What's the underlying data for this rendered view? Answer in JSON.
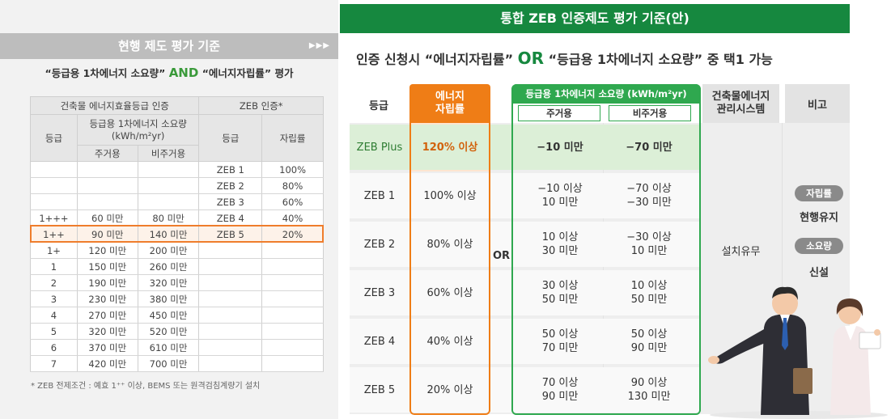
{
  "left": {
    "header_title": "현행 제도 평가 기준",
    "header_arrows": "▶▶▶",
    "subtitle_pre": "“등급용 1차에너지 소요량”",
    "subtitle_and": "AND",
    "subtitle_post": "“에너지자립률” 평가",
    "table": {
      "group1": "건축물 에너지효율등급 인증",
      "group2": "ZEB 인증*",
      "col_grade": "등급",
      "col_req": "등급용 1차에너지 소요량 (kWh/m²yr)",
      "col_res": "주거용",
      "col_nonres": "비주거용",
      "col_zeb_grade": "등급",
      "col_rate": "자립률",
      "rows": [
        {
          "g": "",
          "r": "",
          "n": "",
          "z": "ZEB 1",
          "p": "100%"
        },
        {
          "g": "",
          "r": "",
          "n": "",
          "z": "ZEB 2",
          "p": "80%"
        },
        {
          "g": "",
          "r": "",
          "n": "",
          "z": "ZEB 3",
          "p": "60%"
        },
        {
          "g": "1+++",
          "r": "60 미만",
          "n": "80 미만",
          "z": "ZEB 4",
          "p": "40%"
        },
        {
          "g": "1++",
          "r": "90 미만",
          "n": "140 미만",
          "z": "ZEB 5",
          "p": "20%"
        },
        {
          "g": "1+",
          "r": "120 미만",
          "n": "200 미만",
          "z": "",
          "p": ""
        },
        {
          "g": "1",
          "r": "150 미만",
          "n": "260 미만",
          "z": "",
          "p": ""
        },
        {
          "g": "2",
          "r": "190 미만",
          "n": "320 미만",
          "z": "",
          "p": ""
        },
        {
          "g": "3",
          "r": "230 미만",
          "n": "380 미만",
          "z": "",
          "p": ""
        },
        {
          "g": "4",
          "r": "270 미만",
          "n": "450 미만",
          "z": "",
          "p": ""
        },
        {
          "g": "5",
          "r": "320 미만",
          "n": "520 미만",
          "z": "",
          "p": ""
        },
        {
          "g": "6",
          "r": "370 미만",
          "n": "610 미만",
          "z": "",
          "p": ""
        },
        {
          "g": "7",
          "r": "420 미만",
          "n": "700 미만",
          "z": "",
          "p": ""
        }
      ]
    },
    "note": "* ZEB 전제조건 : 예효 1⁺⁺ 이상, BEMS 또는 원격검침계량기 설치"
  },
  "right": {
    "banner": "통합 ZEB 인증제도 평가 기준(안)",
    "subtitle_pre": "인증 신청시 “에너지자립률”",
    "subtitle_or": "OR",
    "subtitle_post": "“등급용 1차에너지 소요량” 중 택1 가능",
    "hdr_grade": "등급",
    "hdr_energy": "에너지\n자립률",
    "hdr_req": "등급용 1차에너지 소요량 (kWh/m²yr)",
    "hdr_res": "주거용",
    "hdr_nonres": "비주거용",
    "hdr_bems": "건축물에너지\n관리시스템",
    "hdr_note": "비고",
    "or_mid": "OR",
    "bems_value": "설치유무",
    "badge1": "자립률",
    "badge1_text": "현행유지",
    "badge2": "소요량",
    "badge2_text": "신설",
    "rows": [
      {
        "grade": "ZEB Plus",
        "energy": "120% 이상",
        "res": "−10 미만",
        "nonres": "−70 미만"
      },
      {
        "grade": "ZEB 1",
        "energy": "100% 이상",
        "res": "−10 이상\n10 미만",
        "nonres": "−70 이상\n−30 미만"
      },
      {
        "grade": "ZEB 2",
        "energy": "80% 이상",
        "res": "10 이상\n30 미만",
        "nonres": "−30 이상\n10 미만"
      },
      {
        "grade": "ZEB 3",
        "energy": "60% 이상",
        "res": "30 이상\n50 미만",
        "nonres": "10 이상\n50 미만"
      },
      {
        "grade": "ZEB 4",
        "energy": "40% 이상",
        "res": "50 이상\n70 미만",
        "nonres": "50 이상\n90 미만"
      },
      {
        "grade": "ZEB 5",
        "energy": "20% 이상",
        "res": "70 이상\n90 미만",
        "nonres": "90 이상\n130 미만"
      }
    ]
  },
  "colors": {
    "green": "#16883f",
    "orange": "#ef7d16",
    "highlight": "#fde5d0"
  }
}
